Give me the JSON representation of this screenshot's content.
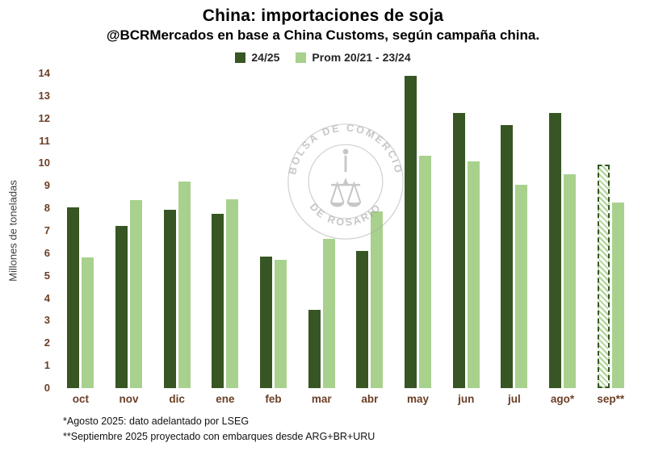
{
  "chart_data": {
    "type": "bar",
    "title": "China: importaciones de soja",
    "subtitle": "@BCRMercados en base a China Customs, según campaña china.",
    "ylabel": "Millones de toneladas",
    "ylim": [
      0,
      14
    ],
    "ytick_step": 1,
    "grid": false,
    "legend_position": "top",
    "categories": [
      "oct",
      "nov",
      "dic",
      "ene",
      "feb",
      "mar",
      "abr",
      "may",
      "jun",
      "jul",
      "ago*",
      "sep**"
    ],
    "series": [
      {
        "name": "24/25",
        "color": "#375623",
        "values": [
          8.05,
          7.2,
          7.95,
          7.75,
          5.85,
          3.5,
          6.1,
          13.9,
          12.25,
          11.7,
          12.25,
          9.95
        ]
      },
      {
        "name": "Prom 20/21 - 23/24",
        "color": "#a9d18e",
        "values": [
          5.8,
          8.35,
          9.2,
          8.4,
          5.7,
          6.65,
          7.85,
          10.35,
          10.1,
          9.05,
          9.5,
          8.25
        ]
      }
    ],
    "projected_category": "sep**",
    "projected_series": "24/25",
    "footnotes": [
      "*Agosto 2025: dato adelantado por LSEG",
      "**Septiembre 2025 proyectado con embarques desde ARG+BR+URU"
    ],
    "watermark_top": "BOLSA DE COMERCIO",
    "watermark_bottom": "DE ROSARIO"
  }
}
